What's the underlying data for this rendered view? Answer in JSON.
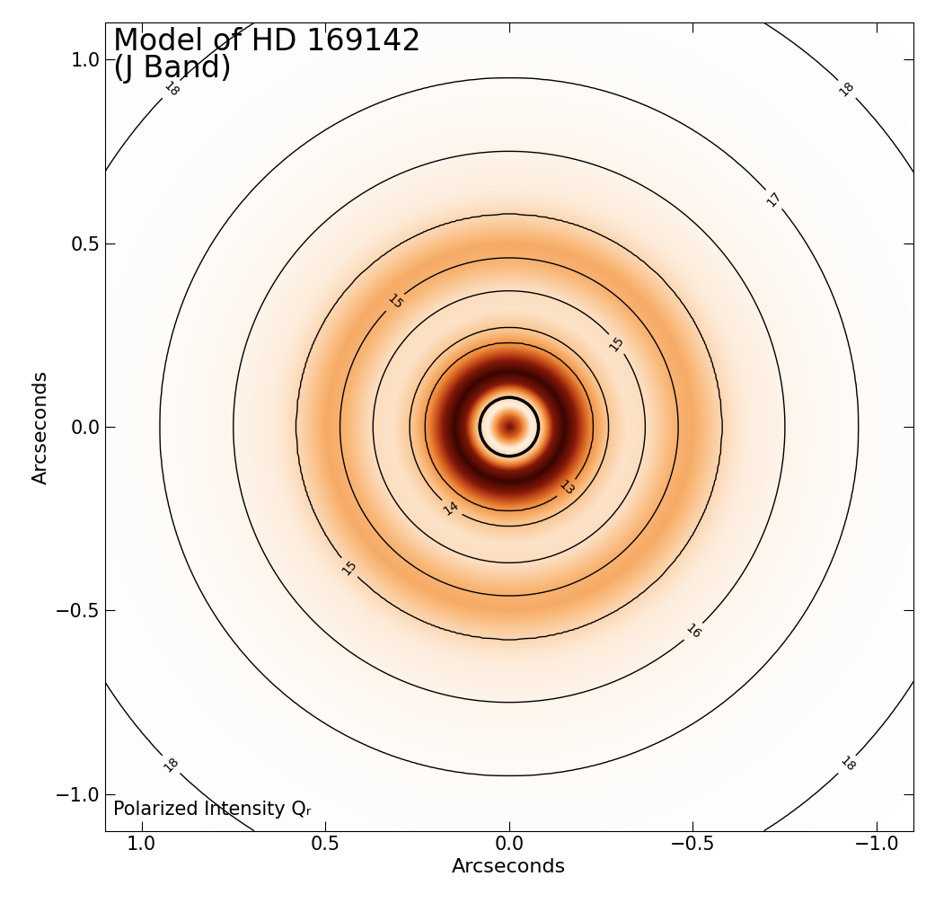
{
  "chart_data": {
    "type": "heatmap",
    "title": "Model of HD 169142\n(J Band)",
    "annotation": "Polarized Intensity Qᵣ",
    "xlabel": "Arcseconds",
    "ylabel": "Arcseconds",
    "xlim": [
      1.1,
      -1.1
    ],
    "ylim": [
      -1.1,
      1.1
    ],
    "xticks": [
      {
        "value": 1.0,
        "label": "1.0"
      },
      {
        "value": 0.5,
        "label": "0.5"
      },
      {
        "value": 0.0,
        "label": "0.0"
      },
      {
        "value": -0.5,
        "label": "−0.5"
      },
      {
        "value": -1.0,
        "label": "−1.0"
      }
    ],
    "yticks": [
      {
        "value": 1.0,
        "label": "1.0"
      },
      {
        "value": 0.5,
        "label": "0.5"
      },
      {
        "value": 0.0,
        "label": "0.0"
      },
      {
        "value": -0.5,
        "label": "−0.5"
      },
      {
        "value": -1.0,
        "label": "−1.0"
      }
    ],
    "radial_profile": {
      "radius": [
        0.0,
        0.03,
        0.06,
        0.09,
        0.12,
        0.15,
        0.18,
        0.22,
        0.26,
        0.32,
        0.38,
        0.45,
        0.5,
        0.56,
        0.65,
        0.8,
        1.0,
        1.6
      ],
      "polarized_intensity": [
        0.9,
        0.6,
        0.1,
        0.3,
        0.85,
        1.0,
        0.85,
        0.5,
        0.3,
        0.18,
        0.2,
        0.35,
        0.38,
        0.25,
        0.12,
        0.05,
        0.02,
        0.0
      ]
    },
    "contour_profile": {
      "radius": [
        0.0,
        0.1,
        0.2,
        0.23,
        0.27,
        0.33,
        0.37,
        0.42,
        0.48,
        0.58,
        0.75,
        0.95,
        1.3,
        1.6
      ],
      "surface_brightness": [
        10.0,
        11.5,
        12.8,
        13.0,
        14.0,
        14.8,
        15.0,
        15.2,
        14.9,
        15.0,
        16.0,
        17.0,
        18.0,
        18.5
      ]
    },
    "contour_levels": [
      13,
      14,
      15,
      16,
      17,
      18
    ],
    "mask_radius": 0.08
  }
}
